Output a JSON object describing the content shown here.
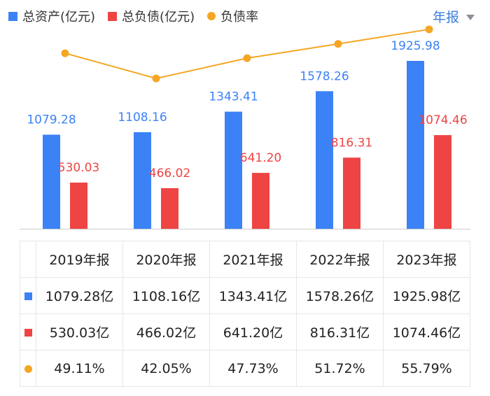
{
  "legend": {
    "assets": "总资产(亿元)",
    "liabilities": "总负债(亿元)",
    "ratio": "负债率"
  },
  "period_selector": {
    "label": "年报",
    "icon": "caret-down-icon"
  },
  "colors": {
    "assets": "#3b82f6",
    "liabilities": "#ef4444",
    "ratio": "#f5a623",
    "axis": "#cccccc"
  },
  "chart_data": {
    "type": "bar",
    "categories": [
      "2019年报",
      "2020年报",
      "2021年报",
      "2022年报",
      "2023年报"
    ],
    "series": [
      {
        "name": "总资产(亿元)",
        "type": "bar",
        "values": [
          1079.28,
          1108.16,
          1343.41,
          1578.26,
          1925.98
        ],
        "labels": [
          "1079.28",
          "1108.16",
          "1343.41",
          "1578.26",
          "1925.98"
        ]
      },
      {
        "name": "总负债(亿元)",
        "type": "bar",
        "values": [
          530.03,
          466.02,
          641.2,
          816.31,
          1074.46
        ],
        "labels": [
          "530.03",
          "466.02",
          "641.20",
          "816.31",
          "1074.46"
        ]
      },
      {
        "name": "负债率",
        "type": "line",
        "values": [
          49.11,
          42.05,
          47.73,
          51.72,
          55.79
        ]
      }
    ],
    "ylim": [
      0,
      1925.98
    ],
    "ratio_ylim": [
      0,
      64
    ]
  },
  "table": {
    "headers": [
      "2019年报",
      "2020年报",
      "2021年报",
      "2022年报",
      "2023年报"
    ],
    "rows": [
      {
        "marker": "assets",
        "cells": [
          "1079.28亿",
          "1108.16亿",
          "1343.41亿",
          "1578.26亿",
          "1925.98亿"
        ]
      },
      {
        "marker": "liabilities",
        "cells": [
          "530.03亿",
          "466.02亿",
          "641.20亿",
          "816.31亿",
          "1074.46亿"
        ]
      },
      {
        "marker": "ratio",
        "cells": [
          "49.11%",
          "42.05%",
          "47.73%",
          "51.72%",
          "55.79%"
        ]
      }
    ]
  }
}
